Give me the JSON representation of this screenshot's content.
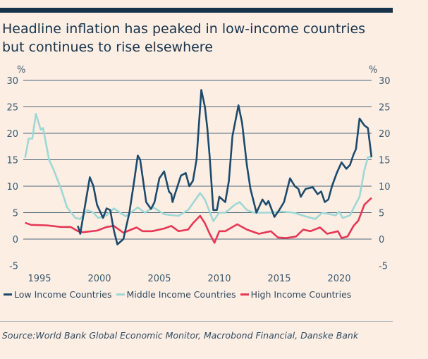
{
  "title_lines": [
    "Headline inflation has peaked in low-income countries",
    "but continues to rise elsewhere"
  ],
  "source": "Source:World Bank Global Economic Monitor, Macrobond Financial, Danske Bank",
  "colors": {
    "background": "#fdeee4",
    "topbar": "#15334a",
    "low": "#1d4a6b",
    "middle": "#9ed8d5",
    "high": "#e63755"
  },
  "chart_data": {
    "type": "line",
    "title": "Headline inflation has peaked in low-income countries but continues to rise elsewhere",
    "ylabel_left": "%",
    "ylabel_right": "%",
    "ylim": [
      -5,
      30
    ],
    "yticks": [
      30,
      25,
      20,
      15,
      10,
      5,
      0,
      -5
    ],
    "xticks": [
      1995,
      2000,
      2005,
      2010,
      2015,
      2020
    ],
    "grid": true,
    "legend": "bottom",
    "series": [
      {
        "name": "Low Income Countries",
        "color": "#1d4a6b",
        "points": [
          [
            1998.2,
            2.5
          ],
          [
            1998.4,
            1
          ],
          [
            1999,
            9
          ],
          [
            1999.2,
            11.7
          ],
          [
            1999.5,
            10
          ],
          [
            1999.8,
            6.5
          ],
          [
            2000.3,
            4
          ],
          [
            2000.6,
            5.8
          ],
          [
            2000.9,
            5.5
          ],
          [
            2001.2,
            1.7
          ],
          [
            2001.5,
            -1
          ],
          [
            2002,
            0
          ],
          [
            2002.5,
            5
          ],
          [
            2002.9,
            11
          ],
          [
            2003.2,
            15.8
          ],
          [
            2003.4,
            15
          ],
          [
            2003.9,
            7
          ],
          [
            2004.3,
            5.7
          ],
          [
            2004.6,
            7
          ],
          [
            2005,
            11.5
          ],
          [
            2005.4,
            12.8
          ],
          [
            2005.8,
            9
          ],
          [
            2006.0,
            8.5
          ],
          [
            2006.1,
            7
          ],
          [
            2006.3,
            8.5
          ],
          [
            2006.8,
            12
          ],
          [
            2007.2,
            12.5
          ],
          [
            2007.5,
            10
          ],
          [
            2007.8,
            11
          ],
          [
            2008.1,
            15
          ],
          [
            2008.5,
            28.2
          ],
          [
            2008.8,
            25
          ],
          [
            2009,
            21
          ],
          [
            2009.2,
            15.5
          ],
          [
            2009.5,
            5.5
          ],
          [
            2009.8,
            5.5
          ],
          [
            2010,
            8
          ],
          [
            2010.5,
            7
          ],
          [
            2010.8,
            11
          ],
          [
            2011.1,
            19.5
          ],
          [
            2011.6,
            25.3
          ],
          [
            2011.9,
            22
          ],
          [
            2012.3,
            14
          ],
          [
            2012.6,
            9.5
          ],
          [
            2013.1,
            5
          ],
          [
            2013.6,
            7.5
          ],
          [
            2013.9,
            6.5
          ],
          [
            2014.1,
            7.2
          ],
          [
            2014.6,
            4.2
          ],
          [
            2015,
            5.5
          ],
          [
            2015.4,
            7
          ],
          [
            2015.9,
            11.5
          ],
          [
            2016.3,
            10
          ],
          [
            2016.6,
            9.5
          ],
          [
            2016.8,
            8
          ],
          [
            2017.2,
            9.5
          ],
          [
            2017.8,
            9.8
          ],
          [
            2018.2,
            8.5
          ],
          [
            2018.5,
            9
          ],
          [
            2018.8,
            7
          ],
          [
            2019.1,
            7.5
          ],
          [
            2019.4,
            10
          ],
          [
            2019.8,
            12.5
          ],
          [
            2020.2,
            14.5
          ],
          [
            2020.6,
            13.3
          ],
          [
            2020.9,
            14
          ],
          [
            2021.2,
            16
          ],
          [
            2021.4,
            17
          ],
          [
            2021.7,
            22.8
          ],
          [
            2022.1,
            21.5
          ],
          [
            2022.4,
            21
          ],
          [
            2022.7,
            15.5
          ]
        ]
      },
      {
        "name": "Middle Income Countries",
        "color": "#9ed8d5",
        "points": [
          [
            1993.8,
            15.4
          ],
          [
            1994.1,
            19
          ],
          [
            1994.4,
            19
          ],
          [
            1994.7,
            23.7
          ],
          [
            1995.1,
            20.7
          ],
          [
            1995.3,
            21
          ],
          [
            1995.8,
            15
          ],
          [
            1996.2,
            13
          ],
          [
            1996.8,
            9.5
          ],
          [
            1997.3,
            6
          ],
          [
            1998,
            4
          ],
          [
            1998.4,
            3.8
          ],
          [
            1999,
            5.5
          ],
          [
            1999.5,
            5
          ],
          [
            1999.9,
            4
          ],
          [
            2000.6,
            4.5
          ],
          [
            2001.2,
            5.8
          ],
          [
            2002.2,
            4.3
          ],
          [
            2003.2,
            6
          ],
          [
            2003.8,
            5
          ],
          [
            2004.5,
            6
          ],
          [
            2005.4,
            4.7
          ],
          [
            2006.6,
            4.4
          ],
          [
            2007.4,
            5.5
          ],
          [
            2008.4,
            8.7
          ],
          [
            2008.8,
            7.5
          ],
          [
            2009.5,
            3.4
          ],
          [
            2010,
            5
          ],
          [
            2010.5,
            5
          ],
          [
            2011.3,
            6.5
          ],
          [
            2011.7,
            7
          ],
          [
            2012.3,
            5.5
          ],
          [
            2012.9,
            5
          ],
          [
            2014.3,
            5
          ],
          [
            2015.2,
            5.2
          ],
          [
            2016.2,
            5
          ],
          [
            2017.2,
            4.3
          ],
          [
            2018,
            3.8
          ],
          [
            2018.6,
            5
          ],
          [
            2019.7,
            4.5
          ],
          [
            2020,
            5.2
          ],
          [
            2020.3,
            4
          ],
          [
            2020.9,
            4.5
          ],
          [
            2021.3,
            6.3
          ],
          [
            2021.7,
            8
          ],
          [
            2022.1,
            13
          ],
          [
            2022.4,
            15.5
          ],
          [
            2022.7,
            15.5
          ]
        ]
      },
      {
        "name": "High Income Countries",
        "color": "#e63755",
        "points": [
          [
            1993.8,
            3.1
          ],
          [
            1994.3,
            2.7
          ],
          [
            1995.6,
            2.6
          ],
          [
            1996.8,
            2.3
          ],
          [
            1997.6,
            2.3
          ],
          [
            1998.2,
            1.5
          ],
          [
            1998.6,
            1.3
          ],
          [
            1999.8,
            1.6
          ],
          [
            2000.6,
            2.3
          ],
          [
            2001.2,
            2.5
          ],
          [
            2002,
            1.2
          ],
          [
            2003.1,
            2.2
          ],
          [
            2003.6,
            1.5
          ],
          [
            2004.4,
            1.5
          ],
          [
            2005.4,
            2
          ],
          [
            2006,
            2.5
          ],
          [
            2006.6,
            1.5
          ],
          [
            2007.4,
            1.8
          ],
          [
            2007.8,
            3
          ],
          [
            2008.4,
            4.4
          ],
          [
            2008.8,
            3
          ],
          [
            2009.2,
            1
          ],
          [
            2009.6,
            -0.7
          ],
          [
            2010,
            1.5
          ],
          [
            2010.5,
            1.5
          ],
          [
            2011.5,
            2.8
          ],
          [
            2012.3,
            1.8
          ],
          [
            2013.3,
            1
          ],
          [
            2014.3,
            1.5
          ],
          [
            2014.9,
            0.3
          ],
          [
            2015.6,
            0.2
          ],
          [
            2016.4,
            0.5
          ],
          [
            2017,
            1.8
          ],
          [
            2017.6,
            1.5
          ],
          [
            2018.4,
            2.2
          ],
          [
            2019,
            1
          ],
          [
            2019.9,
            1.5
          ],
          [
            2020.2,
            0.2
          ],
          [
            2020.7,
            0.5
          ],
          [
            2021.2,
            2.5
          ],
          [
            2021.6,
            3.5
          ],
          [
            2022.1,
            6.5
          ],
          [
            2022.7,
            7.8
          ]
        ]
      }
    ]
  }
}
